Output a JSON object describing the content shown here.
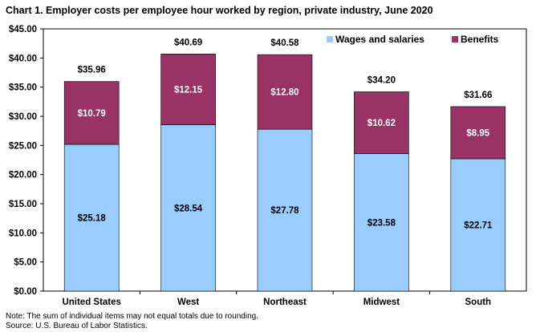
{
  "chart_data": {
    "type": "bar",
    "stacked": true,
    "title": "Chart 1. Employer costs per employee hour worked by region, private industry, June 2020",
    "categories": [
      "United States",
      "West",
      "Northeast",
      "Midwest",
      "South"
    ],
    "series": [
      {
        "name": "Wages and salaries",
        "color": "#99ccff",
        "values": [
          25.18,
          28.54,
          27.78,
          23.58,
          22.71
        ],
        "labels": [
          "$25.18",
          "$28.54",
          "$27.78",
          "$23.58",
          "$22.71"
        ]
      },
      {
        "name": "Benefits",
        "color": "#993366",
        "values": [
          10.79,
          12.15,
          12.8,
          10.62,
          8.95
        ],
        "labels": [
          "$10.79",
          "$12.15",
          "$12.80",
          "$10.62",
          "$8.95"
        ]
      }
    ],
    "totals": [
      35.96,
      40.69,
      40.58,
      34.2,
      31.66
    ],
    "total_labels": [
      "$35.96",
      "$40.69",
      "$40.58",
      "$34.20",
      "$31.66"
    ],
    "ylim": [
      0,
      45
    ],
    "yticks": [
      0,
      5,
      10,
      15,
      20,
      25,
      30,
      35,
      40,
      45
    ],
    "ytick_labels": [
      "$0.00",
      "$5.00",
      "$10.00",
      "$15.00",
      "$20.00",
      "$25.00",
      "$30.00",
      "$35.00",
      "$40.00",
      "$45.00"
    ],
    "xlabel": "",
    "ylabel": "",
    "grid": false,
    "legend_position": "top-right"
  },
  "notes": {
    "note_1": "Note: The sum of individual items may not equal totals due to rounding.",
    "note_2": "Source: U.S. Bureau of Labor Statistics."
  }
}
